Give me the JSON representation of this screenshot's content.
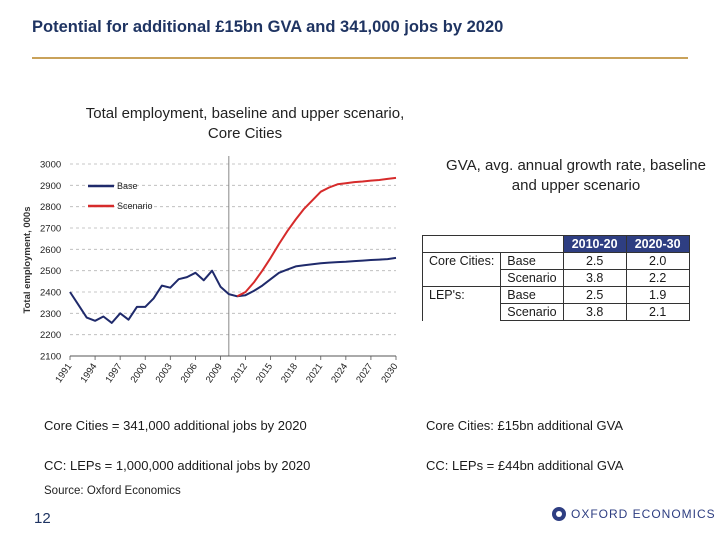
{
  "slide": {
    "title": "Potential for additional £15bn GVA and 341,000 jobs by 2020",
    "page_number": "12",
    "source": "Source: Oxford Economics",
    "logo_text": "OXFORD ECONOMICS",
    "accent_color": "#c9a25a"
  },
  "chart_data": {
    "type": "line",
    "title": "Total employment, baseline and upper scenario, Core Cities",
    "ylabel": "Total employment, 000s",
    "xlabel": "",
    "ylim": [
      2100,
      3000
    ],
    "yticks": [
      "2100",
      "2200",
      "2300",
      "2400",
      "2500",
      "2600",
      "2700",
      "2800",
      "2900",
      "3000"
    ],
    "xlim": [
      1991,
      2030
    ],
    "xticks": [
      "1991",
      "1994",
      "1997",
      "2000",
      "2003",
      "2006",
      "2009",
      "2012",
      "2015",
      "2018",
      "2021",
      "2024",
      "2027",
      "2030"
    ],
    "legend": "top-left",
    "gridlines": "dashed",
    "vertical_marker_year": 2010,
    "series": [
      {
        "name": "Base",
        "color": "#1f2a6b",
        "x": [
          1991,
          1992,
          1993,
          1994,
          1995,
          1996,
          1997,
          1998,
          1999,
          2000,
          2001,
          2002,
          2003,
          2004,
          2005,
          2006,
          2007,
          2008,
          2009,
          2010,
          2011,
          2012,
          2013,
          2014,
          2015,
          2016,
          2017,
          2018,
          2019,
          2020,
          2021,
          2022,
          2023,
          2024,
          2025,
          2026,
          2027,
          2028,
          2029,
          2030
        ],
        "values": [
          2400,
          2340,
          2280,
          2265,
          2285,
          2255,
          2300,
          2270,
          2330,
          2330,
          2370,
          2430,
          2420,
          2460,
          2470,
          2490,
          2455,
          2500,
          2425,
          2390,
          2380,
          2385,
          2405,
          2430,
          2460,
          2490,
          2505,
          2520,
          2525,
          2530,
          2535,
          2538,
          2540,
          2542,
          2545,
          2547,
          2550,
          2552,
          2554,
          2560
        ]
      },
      {
        "name": "Scenario",
        "color": "#d62b2b",
        "x": [
          2011,
          2012,
          2013,
          2014,
          2015,
          2016,
          2017,
          2018,
          2019,
          2020,
          2021,
          2022,
          2023,
          2024,
          2025,
          2026,
          2027,
          2028,
          2029,
          2030
        ],
        "values": [
          2380,
          2400,
          2445,
          2500,
          2560,
          2625,
          2685,
          2740,
          2790,
          2830,
          2870,
          2890,
          2905,
          2910,
          2915,
          2918,
          2922,
          2925,
          2930,
          2935
        ]
      }
    ]
  },
  "gva": {
    "title": "GVA, avg. annual growth rate, baseline and upper scenario",
    "columns": [
      "2010-20",
      "2020-30"
    ],
    "rows": [
      {
        "group": "Core Cities:",
        "label": "Base",
        "v1": "2.5",
        "v2": "2.0"
      },
      {
        "group": "",
        "label": "Scenario",
        "v1": "3.8",
        "v2": "2.2"
      },
      {
        "group": "LEP's:",
        "label": "Base",
        "v1": "2.5",
        "v2": "1.9"
      },
      {
        "group": "",
        "label": "Scenario",
        "v1": "3.8",
        "v2": "2.1"
      }
    ]
  },
  "statements": {
    "cc_jobs": "Core Cities = 341,000 additional jobs by 2020",
    "cc_gva": "Core Cities: £15bn additional GVA",
    "lep_jobs": "CC: LEPs = 1,000,000 additional jobs by 2020",
    "lep_gva": "CC: LEPs = £44bn additional GVA"
  }
}
